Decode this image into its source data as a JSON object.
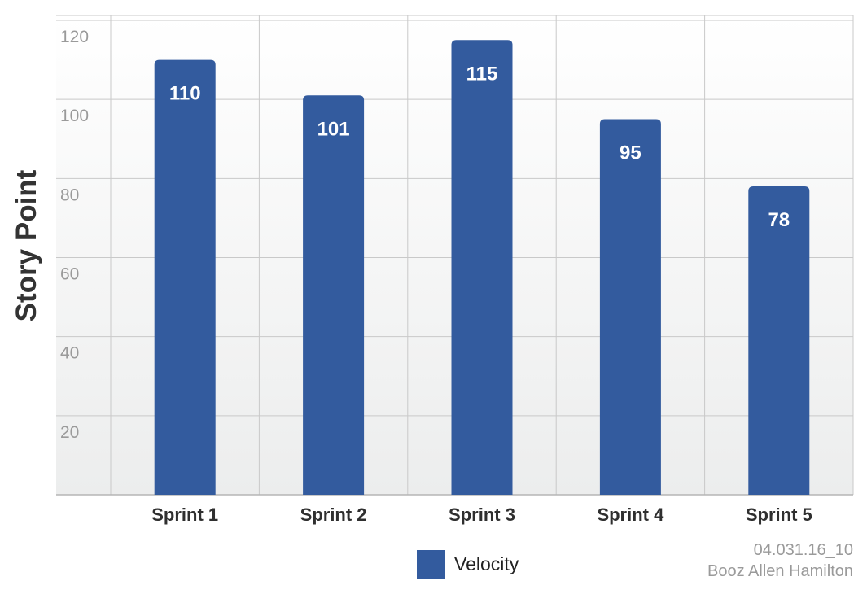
{
  "chart_data": {
    "type": "bar",
    "categories": [
      "Sprint 1",
      "Sprint 2",
      "Sprint 3",
      "Sprint 4",
      "Sprint 5"
    ],
    "series": [
      {
        "name": "Velocity",
        "values": [
          110,
          101,
          115,
          95,
          78
        ],
        "color": "#335b9e"
      }
    ],
    "value_labels": [
      "110",
      "101",
      "115",
      "95",
      "78"
    ],
    "title": "",
    "xlabel": "",
    "ylabel": "Story Point",
    "ylim": [
      0,
      120
    ],
    "yticks": [
      20,
      40,
      60,
      80,
      100,
      120
    ],
    "ytick_labels": [
      "20",
      "40",
      "60",
      "80",
      "100",
      "120"
    ],
    "grid": true,
    "legend_position": "bottom-center"
  },
  "footer": {
    "code": "04.031.16_10",
    "company": "Booz Allen Hamilton"
  },
  "colors": {
    "bar": "#335b9e",
    "grid": "#c9c9c9",
    "tick_text": "#9a9a9a"
  }
}
